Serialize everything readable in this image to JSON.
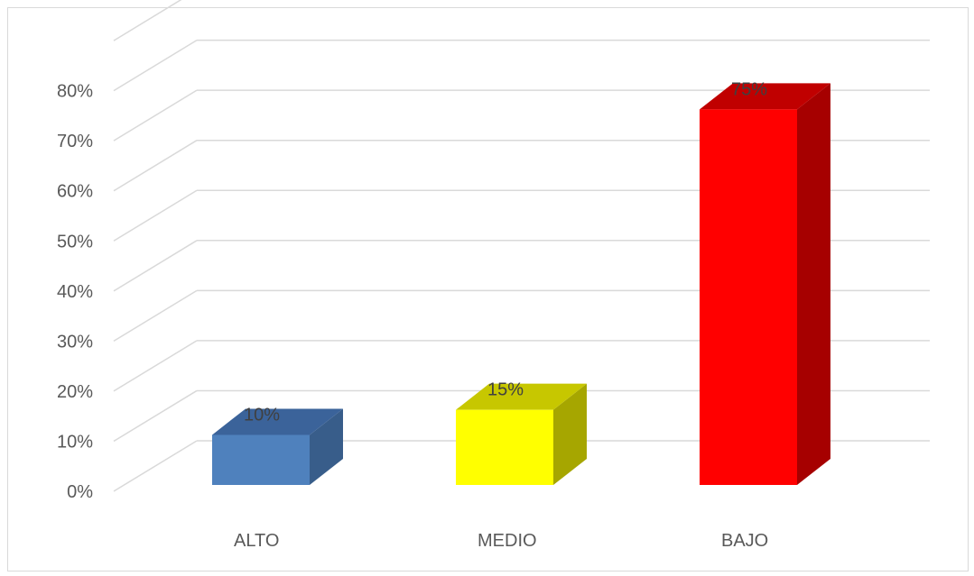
{
  "chart_data": {
    "type": "bar",
    "style": "3d-column",
    "categories": [
      "ALTO",
      "MEDIO",
      "BAJO"
    ],
    "values": [
      10,
      15,
      75
    ],
    "data_labels": [
      "10%",
      "15%",
      "75%"
    ],
    "colors": [
      "#4F81BD",
      "#FFFF00",
      "#FF0000"
    ],
    "side_colors": [
      "#385D8A",
      "#A6A600",
      "#A60000"
    ],
    "top_colors": [
      "#3B639A",
      "#C7C700",
      "#C00000"
    ],
    "y_ticks": [
      "0%",
      "10%",
      "20%",
      "30%",
      "40%",
      "50%",
      "60%",
      "70%",
      "80%"
    ],
    "ylim": [
      0,
      80
    ],
    "grid": true,
    "legend": "none"
  }
}
